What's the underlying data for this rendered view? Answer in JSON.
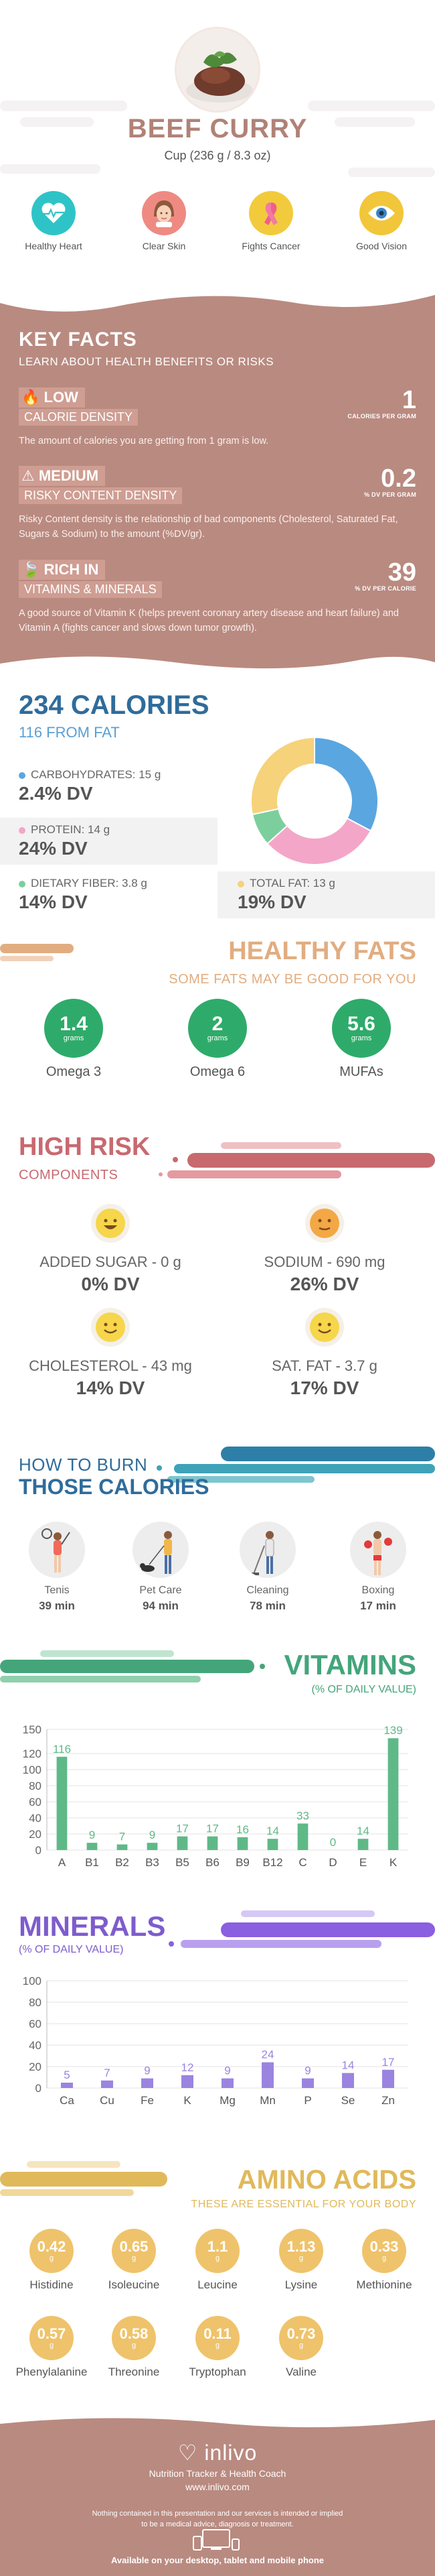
{
  "header": {
    "title": "BEEF CURRY",
    "serving": "Cup (236 g / 8.3 oz)",
    "benefits": [
      {
        "label": "Healthy Heart",
        "icon": "heart-pulse-icon",
        "color": "#2ec4c7"
      },
      {
        "label": "Clear Skin",
        "icon": "face-icon",
        "color": "#ef8a83"
      },
      {
        "label": "Fights Cancer",
        "icon": "ribbon-icon",
        "color": "#f2cb3c"
      },
      {
        "label": "Good Vision",
        "icon": "eye-icon",
        "color": "#f2c63a"
      }
    ]
  },
  "key_facts": {
    "title": "KEY FACTS",
    "subtitle": "LEARN ABOUT HEALTH BENEFITS OR RISKS",
    "items": [
      {
        "level": "LOW",
        "label": "CALORIE DENSITY",
        "value": "1",
        "unit": "CALORIES PER GRAM",
        "desc": "The amount of calories you are getting from 1 gram is low."
      },
      {
        "level": "MEDIUM",
        "label": "RISKY CONTENT DENSITY",
        "value": "0.2",
        "unit": "% DV PER GRAM",
        "desc": "Risky Content density is the relationship of bad components (Cholesterol, Saturated Fat, Sugars & Sodium) to the amount (%DV/gr)."
      },
      {
        "level": "RICH IN",
        "label": "VITAMINS & MINERALS",
        "value": "39",
        "unit": "% DV PER CALORIE",
        "desc": "A good source of Vitamin K (helps prevent coronary artery disease and heart failure) and Vitamin A (fights cancer and slows down tumor growth)."
      }
    ]
  },
  "calories": {
    "title": "234 CALORIES",
    "from_fat": "116 FROM FAT",
    "macros": [
      {
        "label": "CARBOHYDRATES: 15 g",
        "dv": "2.4% DV",
        "color": "#5aa6e0"
      },
      {
        "label": "PROTEIN: 14 g",
        "dv": "24% DV",
        "color": "#f4a6c8"
      },
      {
        "label": "DIETARY FIBER: 3.8 g",
        "dv": "14% DV",
        "color": "#7ccf9d"
      },
      {
        "label": "TOTAL FAT: 13 g",
        "dv": "19% DV",
        "color": "#f6d27a"
      }
    ]
  },
  "chart_data": [
    {
      "type": "pie",
      "categories": [
        "Carbohydrates",
        "Protein",
        "Dietary Fiber",
        "Total Fat"
      ],
      "values": [
        15,
        14,
        3.8,
        13
      ],
      "colors": [
        "#5aa6e0",
        "#f4a6c8",
        "#7ccf9d",
        "#f6d27a"
      ]
    },
    {
      "type": "bar",
      "title": "VITAMINS",
      "subtitle": "(% OF DAILY VALUE)",
      "categories": [
        "A",
        "B1",
        "B2",
        "B3",
        "B5",
        "B6",
        "B9",
        "B12",
        "C",
        "D",
        "E",
        "K"
      ],
      "values": [
        116,
        9,
        7,
        9,
        17,
        17,
        16,
        14,
        33,
        0,
        14,
        139
      ],
      "ylim": [
        0,
        150
      ],
      "yticks": [
        0,
        20,
        40,
        60,
        80,
        100,
        120,
        150
      ],
      "color": "#5fb987",
      "grid": true
    },
    {
      "type": "bar",
      "title": "MINERALS",
      "subtitle": "(% OF DAILY VALUE)",
      "categories": [
        "Ca",
        "Cu",
        "Fe",
        "K",
        "Mg",
        "Mn",
        "P",
        "Se",
        "Zn"
      ],
      "values": [
        5,
        7,
        9,
        12,
        9,
        24,
        9,
        14,
        17
      ],
      "ylim": [
        0,
        100
      ],
      "yticks": [
        0,
        20,
        40,
        60,
        80,
        100
      ],
      "color": "#9b84e0",
      "grid": true
    }
  ],
  "fats": {
    "title": "HEALTHY FATS",
    "subtitle": "SOME FATS MAY BE GOOD FOR YOU",
    "items": [
      {
        "value": "1.4",
        "unit": "grams",
        "label": "Omega 3"
      },
      {
        "value": "2",
        "unit": "grams",
        "label": "Omega 6"
      },
      {
        "value": "5.6",
        "unit": "grams",
        "label": "MUFAs"
      }
    ]
  },
  "risk": {
    "title": "HIGH RISK",
    "subtitle": "COMPONENTS",
    "items": [
      {
        "label": "ADDED SUGAR - 0 g",
        "dv": "0% DV",
        "face": "happy-face-icon",
        "color": "#f6d64a"
      },
      {
        "label": "SODIUM - 690 mg",
        "dv": "26% DV",
        "face": "neutral-face-icon",
        "color": "#f3a845"
      },
      {
        "label": "CHOLESTEROL - 43 mg",
        "dv": "14% DV",
        "face": "smile-face-icon",
        "color": "#f6d64a"
      },
      {
        "label": "SAT. FAT - 3.7 g",
        "dv": "17% DV",
        "face": "smile-face-icon",
        "color": "#f6d64a"
      }
    ]
  },
  "burn": {
    "title1": "HOW TO BURN",
    "title2": "THOSE CALORIES",
    "activities": [
      {
        "label": "Tenis",
        "time": "39 min",
        "icon": "tennis-player-icon"
      },
      {
        "label": "Pet Care",
        "time": "94 min",
        "icon": "dog-walker-icon"
      },
      {
        "label": "Cleaning",
        "time": "78 min",
        "icon": "cleaning-person-icon"
      },
      {
        "label": "Boxing",
        "time": "17 min",
        "icon": "boxer-icon"
      }
    ]
  },
  "amino": {
    "title": "AMINO ACIDS",
    "subtitle": "THESE ARE ESSENTIAL FOR YOUR BODY",
    "unit": "g",
    "items": [
      {
        "value": "0.42",
        "label": "Histidine"
      },
      {
        "value": "0.65",
        "label": "Isoleucine"
      },
      {
        "value": "1.1",
        "label": "Leucine"
      },
      {
        "value": "1.13",
        "label": "Lysine"
      },
      {
        "value": "0.33",
        "label": "Methionine"
      },
      {
        "value": "0.57",
        "label": "Phenylalanine"
      },
      {
        "value": "0.58",
        "label": "Threonine"
      },
      {
        "value": "0.11",
        "label": "Tryptophan"
      },
      {
        "value": "0.73",
        "label": "Valine"
      }
    ]
  },
  "footer": {
    "brand": "inlivo",
    "tagline": "Nutrition Tracker & Health Coach",
    "url": "www.inlivo.com",
    "disclaimer_1": "Nothing contained in this presentation and our services is intended or implied",
    "disclaimer_2": "to be a medical advice, diagnosis or treatment.",
    "available": "Available on your desktop, tablet and mobile phone"
  }
}
